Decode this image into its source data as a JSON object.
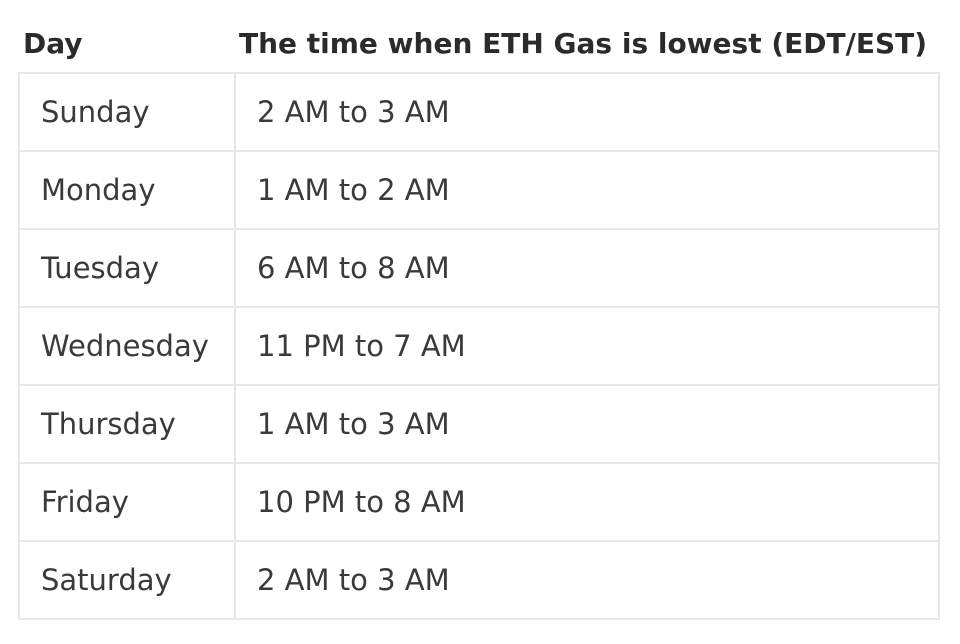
{
  "table": {
    "headers": {
      "day": "Day",
      "time": "The time when ETH Gas is lowest (EDT/EST)"
    },
    "rows": [
      {
        "day": "Sunday",
        "time": "2 AM to 3 AM"
      },
      {
        "day": "Monday",
        "time": "1 AM to 2 AM"
      },
      {
        "day": "Tuesday",
        "time": "6 AM to 8 AM"
      },
      {
        "day": "Wednesday",
        "time": "11 PM to 7 AM"
      },
      {
        "day": "Thursday",
        "time": "1 AM to 3 AM"
      },
      {
        "day": "Friday",
        "time": "10 PM to 8 AM"
      },
      {
        "day": "Saturday",
        "time": "2 AM to 3 AM"
      }
    ]
  }
}
